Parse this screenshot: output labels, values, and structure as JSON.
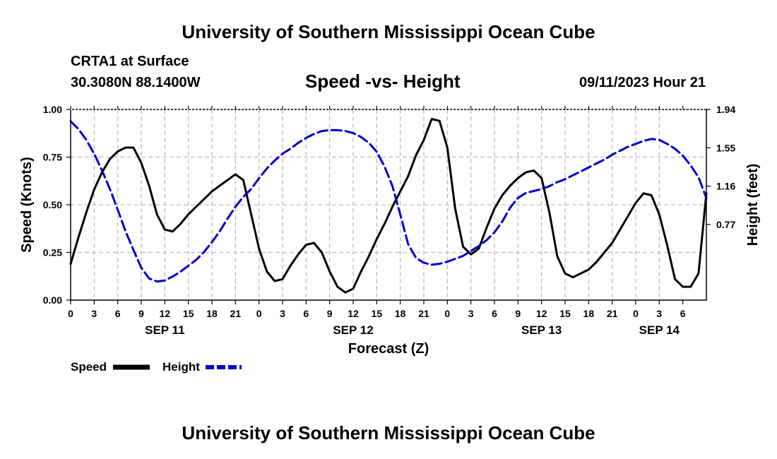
{
  "header": {
    "title": "University of Southern Mississippi Ocean Cube",
    "station": "CRTA1 at Surface",
    "coords": "30.3080N  88.1400W",
    "plot_title": "Speed -vs- Height",
    "run_time": "09/11/2023 Hour 21"
  },
  "footer": {
    "title": "University of Southern Mississippi Ocean Cube"
  },
  "legend": {
    "speed_label": "Speed",
    "height_label": "Height",
    "speed_color": "#000000",
    "height_color": "#0000cc"
  },
  "chart_data": {
    "type": "line",
    "title": "Speed -vs- Height",
    "xlabel": "Forecast (Z)",
    "ylabel": "Speed (Knots)",
    "y2label": "Height (feet)",
    "x_range_hours": [
      0,
      81
    ],
    "ylim": [
      0.0,
      1.0
    ],
    "y2lim": [
      0.0,
      1.94
    ],
    "y_ticks": [
      "0.00",
      "0.25",
      "0.50",
      "0.75",
      "1.00"
    ],
    "y2_ticks": [
      "0.77",
      "1.16",
      "1.55",
      "1.94"
    ],
    "y2_tick_values": [
      0.77,
      1.16,
      1.55,
      1.94
    ],
    "x_tick_labels": [
      "0",
      "3",
      "6",
      "9",
      "12",
      "15",
      "18",
      "21",
      "0",
      "3",
      "6",
      "9",
      "12",
      "15",
      "18",
      "21",
      "0",
      "3",
      "6",
      "9",
      "12",
      "15",
      "18",
      "21",
      "0",
      "3",
      "6"
    ],
    "date_labels": [
      {
        "label": "SEP 11",
        "hour": 12
      },
      {
        "label": "SEP 12",
        "hour": 36
      },
      {
        "label": "SEP 13",
        "hour": 60
      },
      {
        "label": "SEP 14",
        "hour": 75
      }
    ],
    "grid": true,
    "legend": "bottom-left",
    "series": [
      {
        "name": "Speed",
        "axis": "left",
        "color": "#000000",
        "style": "solid",
        "x": [
          0,
          1,
          2,
          3,
          4,
          5,
          6,
          7,
          8,
          9,
          10,
          11,
          12,
          13,
          14,
          15,
          16,
          17,
          18,
          19,
          20,
          21,
          22,
          23,
          24,
          25,
          26,
          27,
          28,
          29,
          30,
          31,
          32,
          33,
          34,
          35,
          36,
          37,
          38,
          39,
          40,
          41,
          42,
          43,
          44,
          45,
          46,
          47,
          48,
          49,
          50,
          51,
          52,
          53,
          54,
          55,
          56,
          57,
          58,
          59,
          60,
          61,
          62,
          63,
          64,
          65,
          66,
          67,
          68,
          69,
          70,
          71,
          72,
          73,
          74,
          75,
          76,
          77,
          78,
          79,
          80,
          81
        ],
        "values": [
          0.19,
          0.33,
          0.46,
          0.58,
          0.67,
          0.74,
          0.78,
          0.8,
          0.8,
          0.72,
          0.6,
          0.45,
          0.37,
          0.36,
          0.4,
          0.45,
          0.49,
          0.53,
          0.57,
          0.6,
          0.63,
          0.66,
          0.63,
          0.45,
          0.27,
          0.15,
          0.1,
          0.11,
          0.18,
          0.24,
          0.29,
          0.3,
          0.25,
          0.15,
          0.07,
          0.04,
          0.06,
          0.15,
          0.23,
          0.32,
          0.4,
          0.49,
          0.57,
          0.65,
          0.76,
          0.84,
          0.95,
          0.94,
          0.8,
          0.48,
          0.28,
          0.24,
          0.27,
          0.38,
          0.48,
          0.55,
          0.6,
          0.64,
          0.67,
          0.68,
          0.64,
          0.46,
          0.23,
          0.14,
          0.12,
          0.14,
          0.16,
          0.2,
          0.25,
          0.3,
          0.37,
          0.44,
          0.51,
          0.56,
          0.55,
          0.45,
          0.29,
          0.11,
          0.07,
          0.07,
          0.14,
          0.56
        ]
      },
      {
        "name": "Height",
        "axis": "right",
        "color": "#0000cc",
        "style": "dashed",
        "x": [
          0,
          1,
          2,
          3,
          4,
          5,
          6,
          7,
          8,
          9,
          10,
          11,
          12,
          13,
          14,
          15,
          16,
          17,
          18,
          19,
          20,
          21,
          22,
          23,
          24,
          25,
          26,
          27,
          28,
          29,
          30,
          31,
          32,
          33,
          34,
          35,
          36,
          37,
          38,
          39,
          40,
          41,
          42,
          43,
          44,
          45,
          46,
          47,
          48,
          49,
          50,
          51,
          52,
          53,
          54,
          55,
          56,
          57,
          58,
          59,
          60,
          61,
          62,
          63,
          64,
          65,
          66,
          67,
          68,
          69,
          70,
          71,
          72,
          73,
          74,
          75,
          76,
          77,
          78,
          79,
          80,
          81
        ],
        "values": [
          1.82,
          1.74,
          1.63,
          1.49,
          1.32,
          1.13,
          0.92,
          0.7,
          0.51,
          0.33,
          0.22,
          0.19,
          0.2,
          0.24,
          0.29,
          0.35,
          0.41,
          0.49,
          0.59,
          0.7,
          0.83,
          0.95,
          1.05,
          1.13,
          1.24,
          1.34,
          1.42,
          1.49,
          1.54,
          1.6,
          1.65,
          1.69,
          1.72,
          1.73,
          1.73,
          1.72,
          1.7,
          1.66,
          1.6,
          1.51,
          1.36,
          1.16,
          0.87,
          0.57,
          0.43,
          0.38,
          0.36,
          0.37,
          0.39,
          0.42,
          0.45,
          0.5,
          0.55,
          0.61,
          0.69,
          0.8,
          0.94,
          1.04,
          1.09,
          1.11,
          1.13,
          1.16,
          1.2,
          1.23,
          1.27,
          1.31,
          1.35,
          1.39,
          1.43,
          1.48,
          1.52,
          1.56,
          1.59,
          1.62,
          1.64,
          1.63,
          1.59,
          1.54,
          1.47,
          1.37,
          1.25,
          1.04
        ]
      }
    ]
  }
}
